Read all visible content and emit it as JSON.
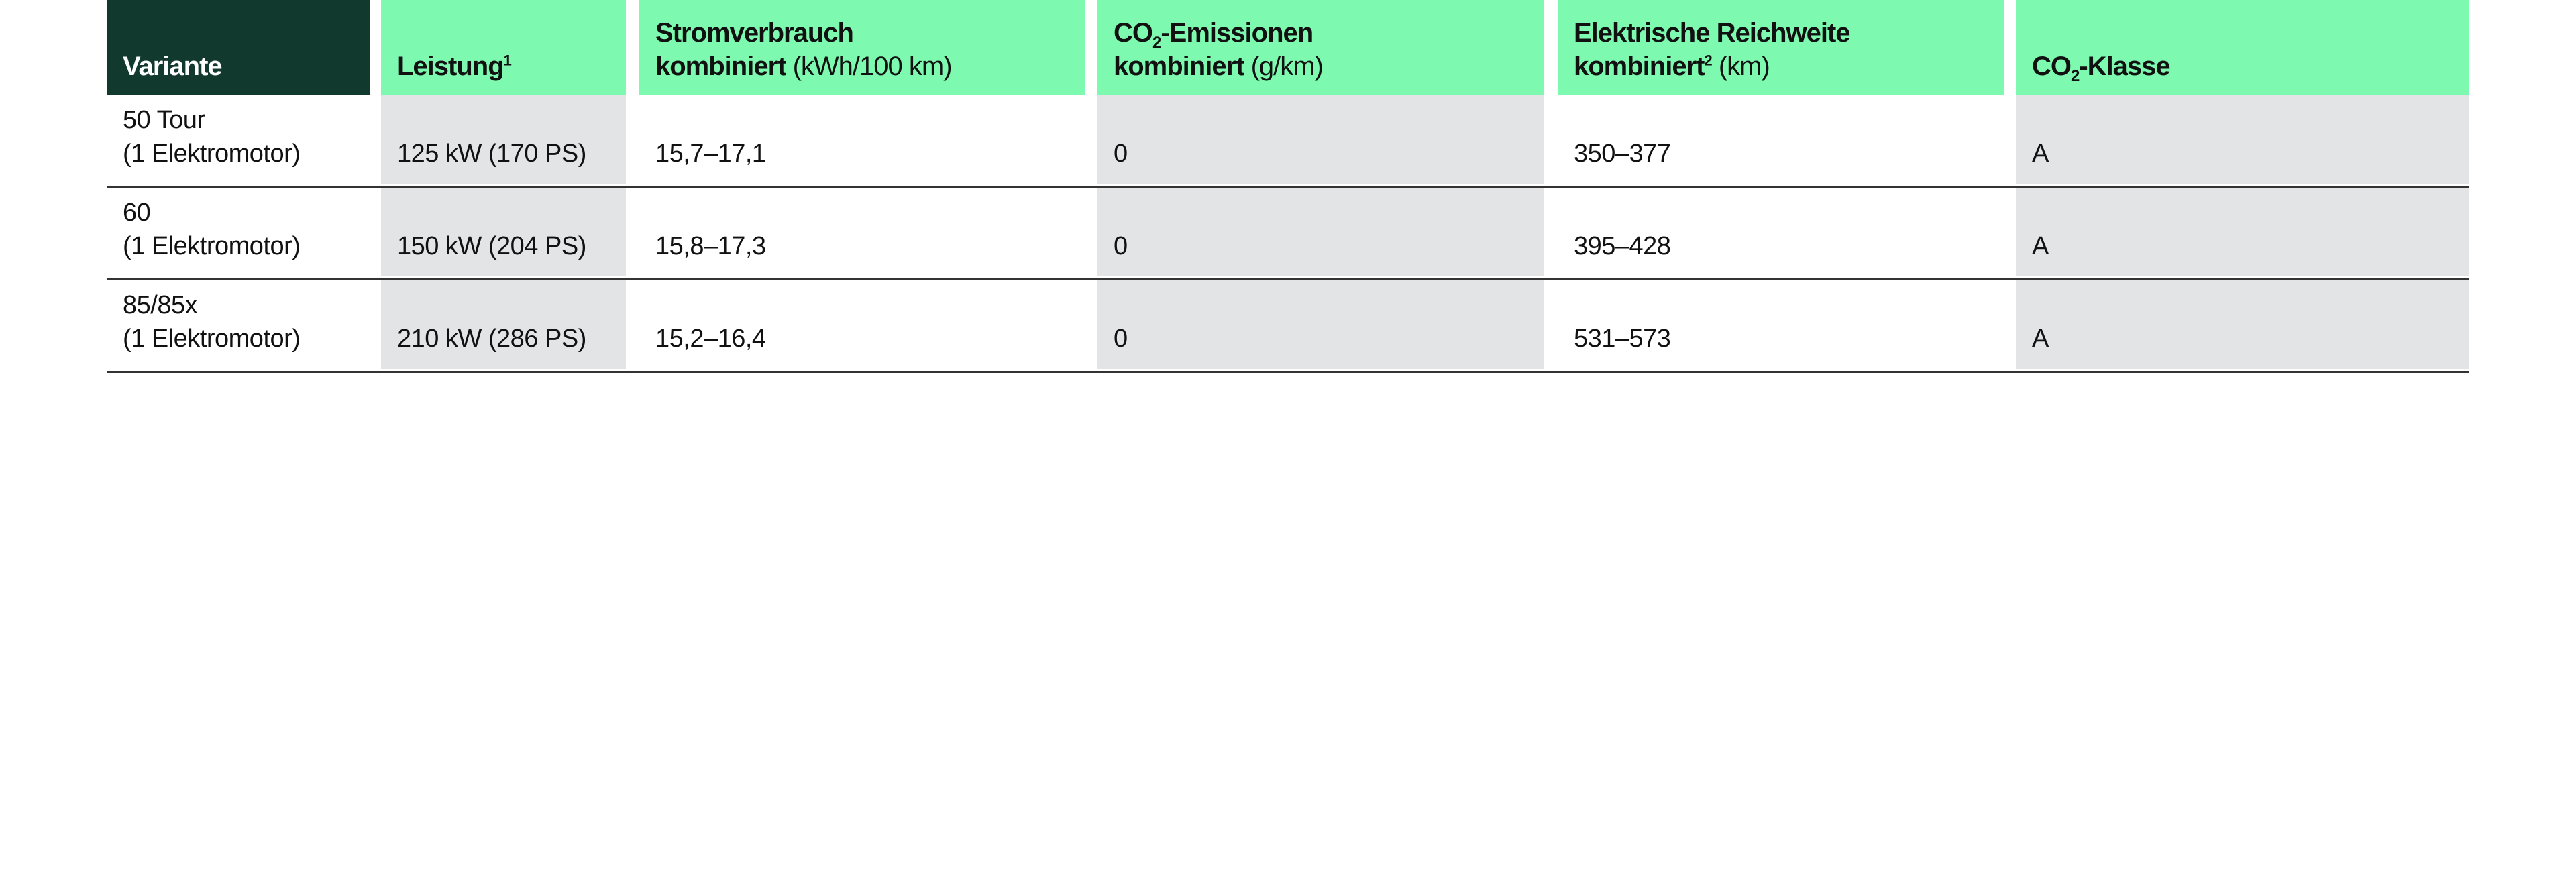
{
  "colors": {
    "header_dark": "#12392e",
    "header_accent": "#7dfab0",
    "stripe": "#e3e4e6"
  },
  "headers": {
    "variante": "Variante",
    "leistung": "Leistung",
    "leistung_sup": "1",
    "strom_line1": "Stromverbrauch",
    "strom_line2": "kombiniert",
    "strom_unit": "(kWh/100 km)",
    "co2_pre": "CO",
    "co2_sub": "2",
    "co2_post": "-Emissionen",
    "co2_line2": "kombiniert",
    "co2_unit": "(g/km)",
    "reichweite_line1": "Elektrische Reichweite",
    "reichweite_line2": "kombiniert",
    "reichweite_sup": "2",
    "reichweite_unit": "(km)",
    "klasse_pre": "CO",
    "klasse_sub": "2",
    "klasse_post": "-Klasse"
  },
  "rows": [
    {
      "variante": "50 Tour",
      "motor": "(1 Elektromotor)",
      "leistung": "125 kW (170 PS)",
      "strom": "15,7–17,1",
      "co2": "0",
      "reichweite": "350–377",
      "klasse": "A"
    },
    {
      "variante": "60",
      "motor": "(1 Elektromotor)",
      "leistung": "150 kW (204 PS)",
      "strom": "15,8–17,3",
      "co2": "0",
      "reichweite": "395–428",
      "klasse": "A"
    },
    {
      "variante": "85/85x",
      "motor": "(1 Elektromotor)",
      "leistung": "210 kW (286 PS)",
      "strom": "15,2–16,4",
      "co2": "0",
      "reichweite": "531–573",
      "klasse": "A"
    }
  ]
}
